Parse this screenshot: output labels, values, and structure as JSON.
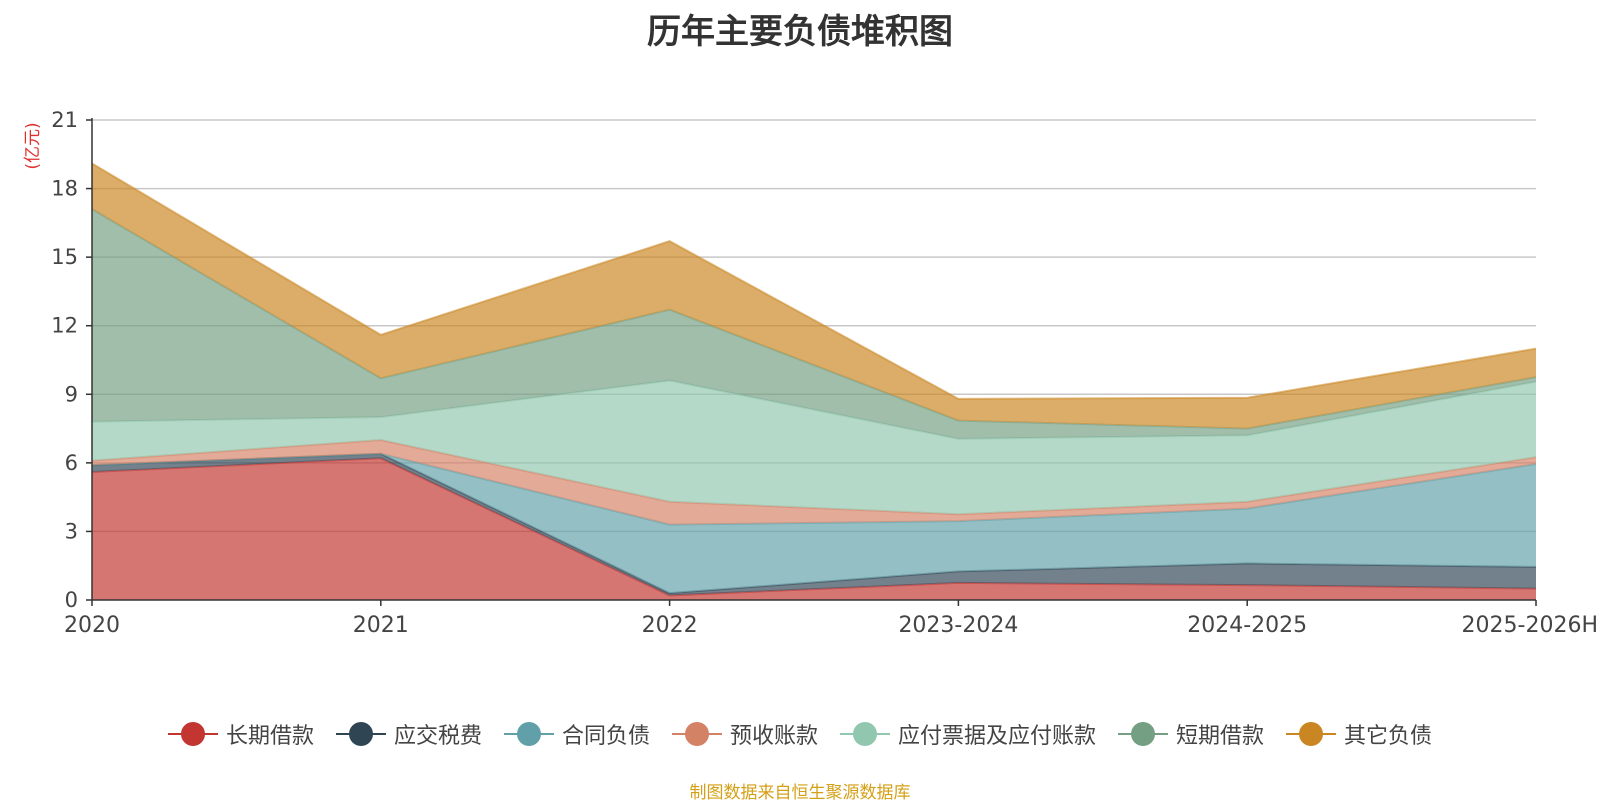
{
  "chart_data": {
    "type": "area",
    "stacked": true,
    "title": "历年主要负债堆积图",
    "ylabel": "(亿元)",
    "ylim": [
      0,
      21
    ],
    "yticks": [
      0,
      3,
      6,
      9,
      12,
      15,
      18,
      21
    ],
    "categories": [
      "2020",
      "2021",
      "2022",
      "2023-2024",
      "2024-2025",
      "2025-2026H"
    ],
    "series": [
      {
        "name": "长期借款",
        "color": "#c23531",
        "values": [
          5.6,
          6.2,
          0.2,
          0.75,
          0.65,
          0.5
        ]
      },
      {
        "name": "应交税费",
        "color": "#2f4554",
        "values": [
          0.3,
          0.2,
          0.1,
          0.5,
          0.95,
          0.95
        ]
      },
      {
        "name": "合同负债",
        "color": "#61a0a8",
        "values": [
          0.0,
          0.0,
          3.0,
          2.2,
          2.4,
          4.5
        ]
      },
      {
        "name": "预收账款",
        "color": "#d48265",
        "values": [
          0.2,
          0.6,
          1.0,
          0.3,
          0.3,
          0.3
        ]
      },
      {
        "name": "应付票据及应付账款",
        "color": "#91c7ae",
        "values": [
          1.7,
          1.0,
          5.3,
          3.3,
          2.9,
          3.3
        ]
      },
      {
        "name": "短期借款",
        "color": "#749f83",
        "values": [
          9.3,
          1.7,
          3.1,
          0.8,
          0.3,
          0.2
        ]
      },
      {
        "name": "其它负债",
        "color": "#ca8622",
        "values": [
          2.0,
          1.9,
          3.0,
          0.95,
          1.35,
          1.25
        ]
      }
    ],
    "source": "制图数据来自恒生聚源数据库"
  }
}
